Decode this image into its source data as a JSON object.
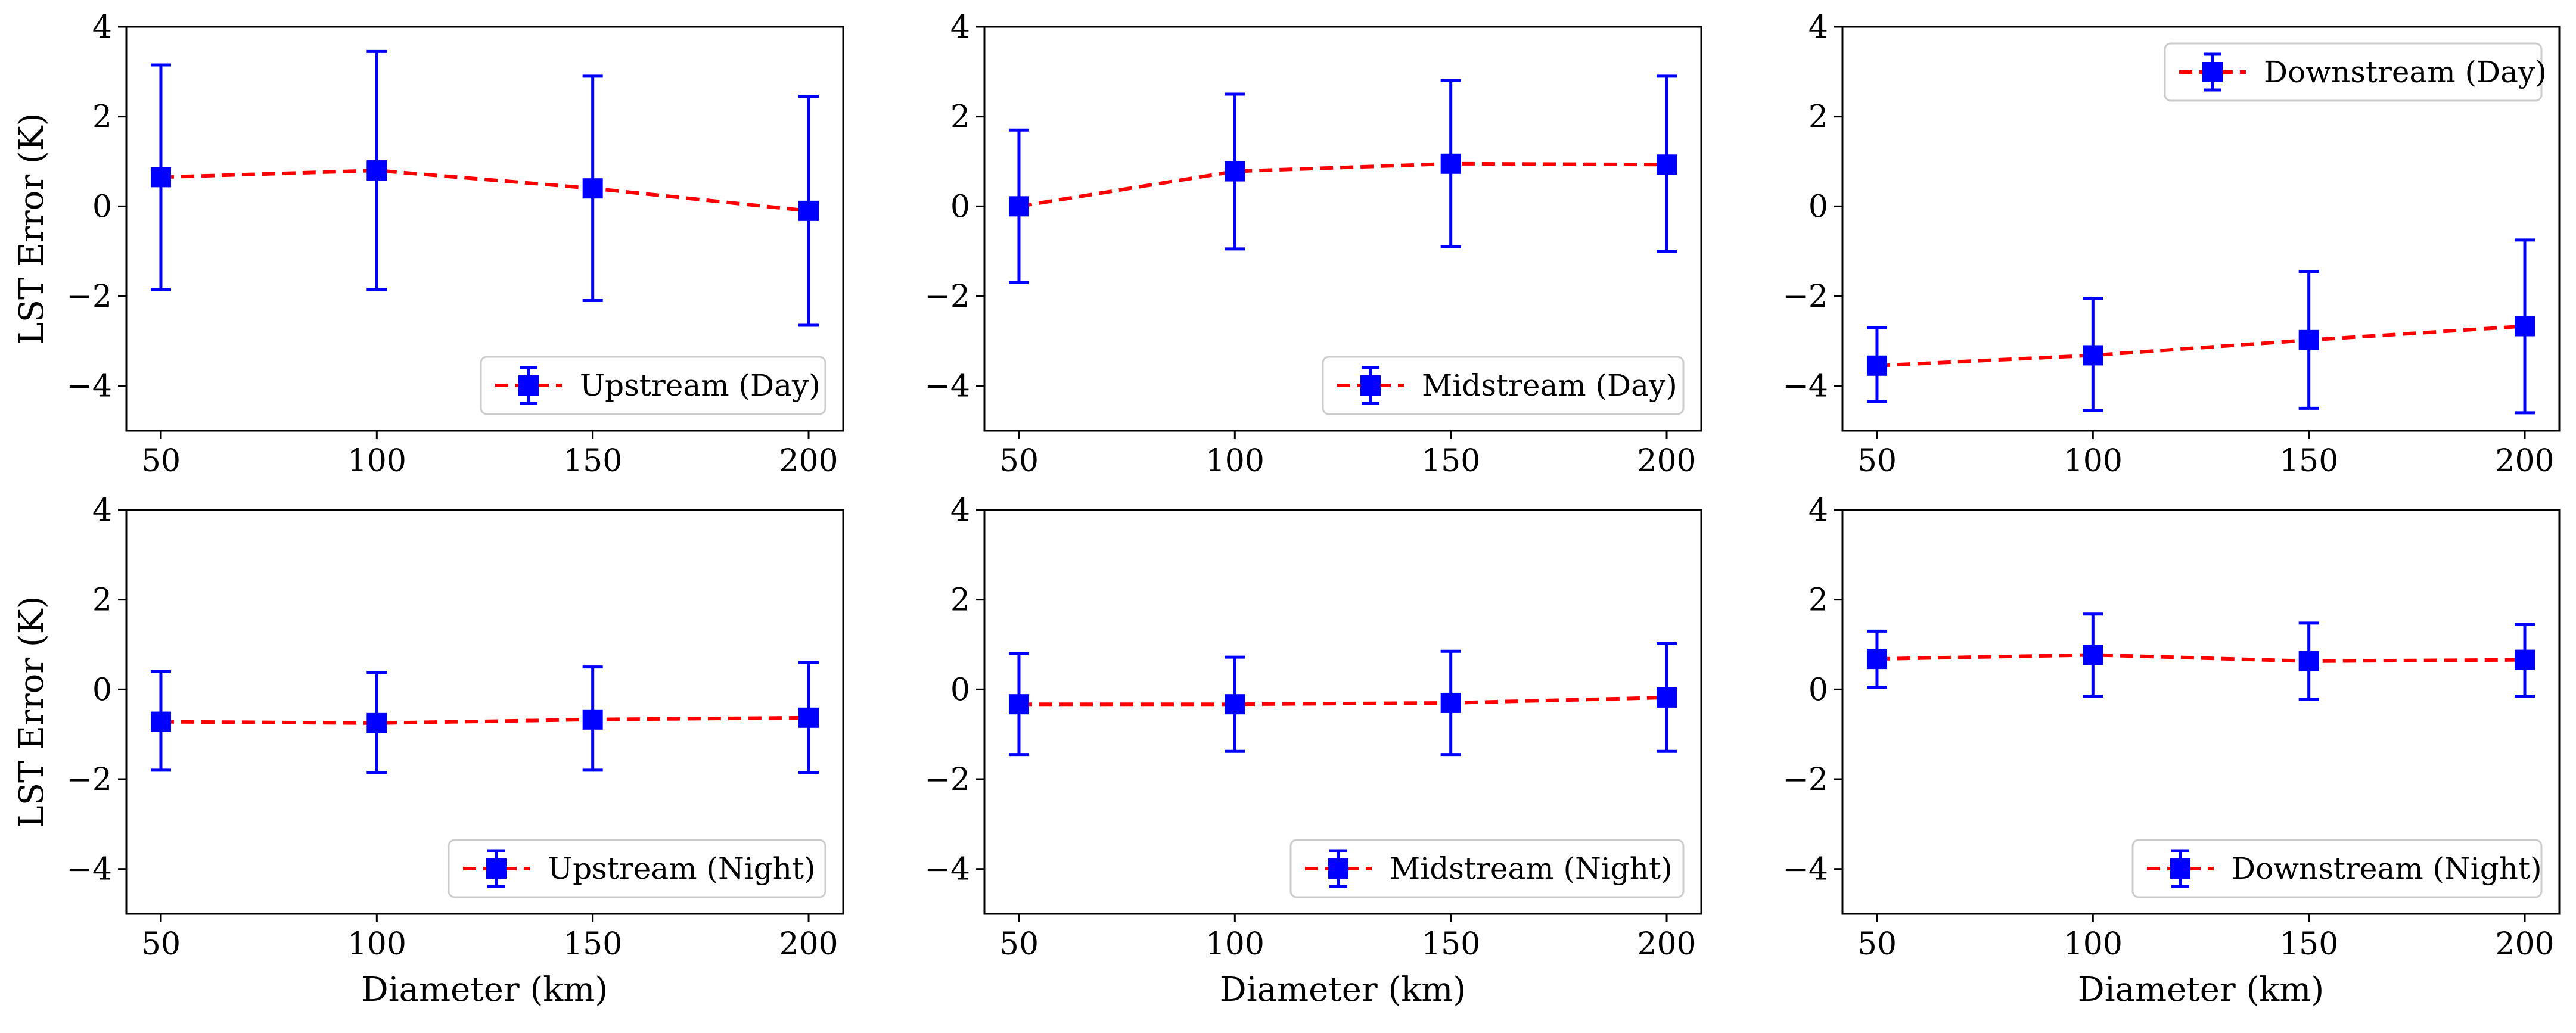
{
  "chart_data": [
    {
      "type": "line",
      "panel": "upstream-day",
      "legend": "Upstream (Day)",
      "legend_loc": "lower-right",
      "x": [
        50,
        100,
        150,
        200
      ],
      "y": [
        0.65,
        0.8,
        0.4,
        -0.1
      ],
      "yerr_low": [
        -1.85,
        -1.85,
        -2.1,
        -2.65
      ],
      "yerr_high": [
        3.15,
        3.45,
        2.9,
        2.45
      ],
      "xticks": [
        50,
        100,
        150,
        200
      ],
      "yticks": [
        -4,
        -2,
        0,
        2,
        4
      ],
      "ylim": [
        -5,
        4
      ],
      "ylabel": "LST Error (K)",
      "xlabel": ""
    },
    {
      "type": "line",
      "panel": "midstream-day",
      "legend": "Midstream (Day)",
      "legend_loc": "lower-right",
      "x": [
        50,
        100,
        150,
        200
      ],
      "y": [
        0.0,
        0.78,
        0.95,
        0.93
      ],
      "yerr_low": [
        -1.7,
        -0.95,
        -0.9,
        -1.0
      ],
      "yerr_high": [
        1.7,
        2.5,
        2.8,
        2.9
      ],
      "xticks": [
        50,
        100,
        150,
        200
      ],
      "yticks": [
        -4,
        -2,
        0,
        2,
        4
      ],
      "ylim": [
        -5,
        4
      ],
      "ylabel": "",
      "xlabel": ""
    },
    {
      "type": "line",
      "panel": "downstream-day",
      "legend": "Downstream (Day)",
      "legend_loc": "upper-right",
      "x": [
        50,
        100,
        150,
        200
      ],
      "y": [
        -3.55,
        -3.32,
        -2.98,
        -2.67
      ],
      "yerr_low": [
        -4.35,
        -4.55,
        -4.5,
        -4.6
      ],
      "yerr_high": [
        -2.7,
        -2.05,
        -1.45,
        -0.75
      ],
      "xticks": [
        50,
        100,
        150,
        200
      ],
      "yticks": [
        -4,
        -2,
        0,
        2,
        4
      ],
      "ylim": [
        -5,
        4
      ],
      "ylabel": "",
      "xlabel": ""
    },
    {
      "type": "line",
      "panel": "upstream-night",
      "legend": "Upstream (Night)",
      "legend_loc": "lower-right",
      "x": [
        50,
        100,
        150,
        200
      ],
      "y": [
        -0.72,
        -0.75,
        -0.67,
        -0.63
      ],
      "yerr_low": [
        -1.8,
        -1.85,
        -1.8,
        -1.85
      ],
      "yerr_high": [
        0.4,
        0.38,
        0.5,
        0.6
      ],
      "xticks": [
        50,
        100,
        150,
        200
      ],
      "yticks": [
        -4,
        -2,
        0,
        2,
        4
      ],
      "ylim": [
        -5,
        4
      ],
      "ylabel": "LST Error (K)",
      "xlabel": "Diameter (km)"
    },
    {
      "type": "line",
      "panel": "midstream-night",
      "legend": "Midstream (Night)",
      "legend_loc": "lower-right",
      "x": [
        50,
        100,
        150,
        200
      ],
      "y": [
        -0.33,
        -0.33,
        -0.3,
        -0.18
      ],
      "yerr_low": [
        -1.45,
        -1.38,
        -1.45,
        -1.38
      ],
      "yerr_high": [
        0.8,
        0.72,
        0.85,
        1.02
      ],
      "xticks": [
        50,
        100,
        150,
        200
      ],
      "yticks": [
        -4,
        -2,
        0,
        2,
        4
      ],
      "ylim": [
        -5,
        4
      ],
      "ylabel": "",
      "xlabel": "Diameter (km)"
    },
    {
      "type": "line",
      "panel": "downstream-night",
      "legend": "Downstream (Night)",
      "legend_loc": "lower-right",
      "x": [
        50,
        100,
        150,
        200
      ],
      "y": [
        0.68,
        0.77,
        0.63,
        0.66
      ],
      "yerr_low": [
        0.05,
        -0.15,
        -0.22,
        -0.15
      ],
      "yerr_high": [
        1.3,
        1.68,
        1.48,
        1.45
      ],
      "xticks": [
        50,
        100,
        150,
        200
      ],
      "yticks": [
        -4,
        -2,
        0,
        2,
        4
      ],
      "ylim": [
        -5,
        4
      ],
      "ylabel": "",
      "xlabel": "Diameter (km)"
    }
  ],
  "style": {
    "line_color": "#ff0000",
    "marker_color": "#0000ff",
    "errorbar_color": "#0000ff",
    "axes_color": "#000000",
    "legend_border_color": "#cccccc"
  }
}
